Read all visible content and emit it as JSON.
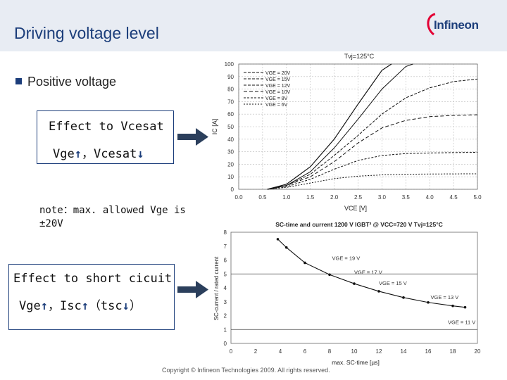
{
  "header": {
    "title": "Driving voltage level",
    "logo_text": "Infineon"
  },
  "bullet": {
    "label": "Positive voltage"
  },
  "box1": {
    "line1": "Effect to Vcesat",
    "line2_a": "Vge",
    "line2_b": "，Vcesat"
  },
  "note": {
    "line1": "note：max. allowed Vge is",
    "line2": "±20V"
  },
  "box2": {
    "line1": "Effect to short cicuit",
    "line2_a": "Vge",
    "line2_b": "，Isc",
    "line2_c": "（tsc",
    "line2_d": "）"
  },
  "footer": {
    "copyright": "Copyright © Infineon Technologies 2009. All rights reserved."
  },
  "colors": {
    "brand": "#1b3d7a",
    "header_bg": "#e8ecf3",
    "arrow": "#2b3f5c"
  },
  "chart_data": [
    {
      "type": "line",
      "title": "Tvj=125°C",
      "xlabel": "VCE [V]",
      "ylabel": "IC [A]",
      "xlim": [
        0,
        5
      ],
      "ylim": [
        0,
        100
      ],
      "xticks": [
        "0.0",
        "0.5",
        "1.0",
        "1.5",
        "2.0",
        "2.5",
        "3.0",
        "3.5",
        "4.0",
        "4.5",
        "5.0"
      ],
      "yticks": [
        "0",
        "10",
        "20",
        "30",
        "40",
        "50",
        "60",
        "70",
        "80",
        "90",
        "100"
      ],
      "legend_position": "top-left",
      "grid": true,
      "series": [
        {
          "name": "VGE = 20V",
          "x": [
            0.6,
            1.0,
            1.5,
            2.0,
            2.5,
            3.0,
            3.2
          ],
          "y": [
            0,
            4,
            18,
            40,
            68,
            95,
            100
          ]
        },
        {
          "name": "VGE = 15V",
          "x": [
            0.6,
            1.0,
            1.5,
            2.0,
            2.5,
            3.0,
            3.5,
            3.65
          ],
          "y": [
            0,
            3,
            14,
            33,
            56,
            80,
            98,
            100
          ]
        },
        {
          "name": "VGE = 12V",
          "x": [
            0.6,
            1.0,
            1.5,
            2.0,
            2.5,
            3.0,
            3.5,
            4.0,
            4.5,
            5.0
          ],
          "y": [
            0,
            3,
            12,
            27,
            43,
            60,
            73,
            81,
            86,
            88
          ]
        },
        {
          "name": "VGE = 10V",
          "x": [
            0.6,
            1.0,
            1.5,
            2.0,
            2.5,
            3.0,
            3.5,
            4.0,
            4.5,
            5.0
          ],
          "y": [
            0,
            3,
            10,
            22,
            37,
            49,
            55,
            58,
            59,
            59.5
          ]
        },
        {
          "name": "VGE = 8V",
          "x": [
            0.6,
            1.0,
            1.5,
            2.0,
            2.5,
            3.0,
            3.5,
            4.0,
            4.5,
            5.0
          ],
          "y": [
            0,
            2,
            8,
            16,
            23,
            27,
            28.5,
            29,
            29.3,
            29.5
          ]
        },
        {
          "name": "VGE = 6V",
          "x": [
            0.6,
            1.0,
            1.5,
            2.0,
            2.5,
            3.0,
            3.5,
            4.0,
            4.5,
            5.0
          ],
          "y": [
            0,
            1.5,
            5,
            8.5,
            10.5,
            11.5,
            12,
            12.2,
            12.3,
            12.4
          ]
        }
      ]
    },
    {
      "type": "line",
      "title": "SC-time and current 1200 V IGBT³ @ VCC=720 V  Tvj=125°C",
      "xlabel": "max. SC-time [µs]",
      "ylabel": "SC-current / rated current",
      "xlim": [
        0,
        20
      ],
      "ylim": [
        0,
        8
      ],
      "xticks": [
        "0",
        "2",
        "4",
        "6",
        "8",
        "10",
        "12",
        "14",
        "16",
        "18",
        "20"
      ],
      "yticks": [
        "0",
        "1",
        "2",
        "3",
        "4",
        "5",
        "6",
        "7",
        "8"
      ],
      "grid": false,
      "reference_lines": [
        5,
        1
      ],
      "series": [
        {
          "name": "SC-current",
          "x": [
            3.8,
            4.5,
            6,
            8,
            10,
            12,
            14,
            16,
            18,
            19
          ],
          "y": [
            7.5,
            6.9,
            5.8,
            4.95,
            4.3,
            3.75,
            3.3,
            2.95,
            2.7,
            2.6
          ]
        }
      ],
      "annotations": [
        {
          "text": "VGE = 19 V",
          "x": 8.2,
          "y": 6.0
        },
        {
          "text": "VGE = 17 V",
          "x": 10.0,
          "y": 5.0
        },
        {
          "text": "VGE = 15 V",
          "x": 12.0,
          "y": 4.2
        },
        {
          "text": "VGE = 13 V",
          "x": 16.2,
          "y": 3.2
        },
        {
          "text": "VGE = 11 V",
          "x": 17.6,
          "y": 1.4
        }
      ]
    }
  ]
}
